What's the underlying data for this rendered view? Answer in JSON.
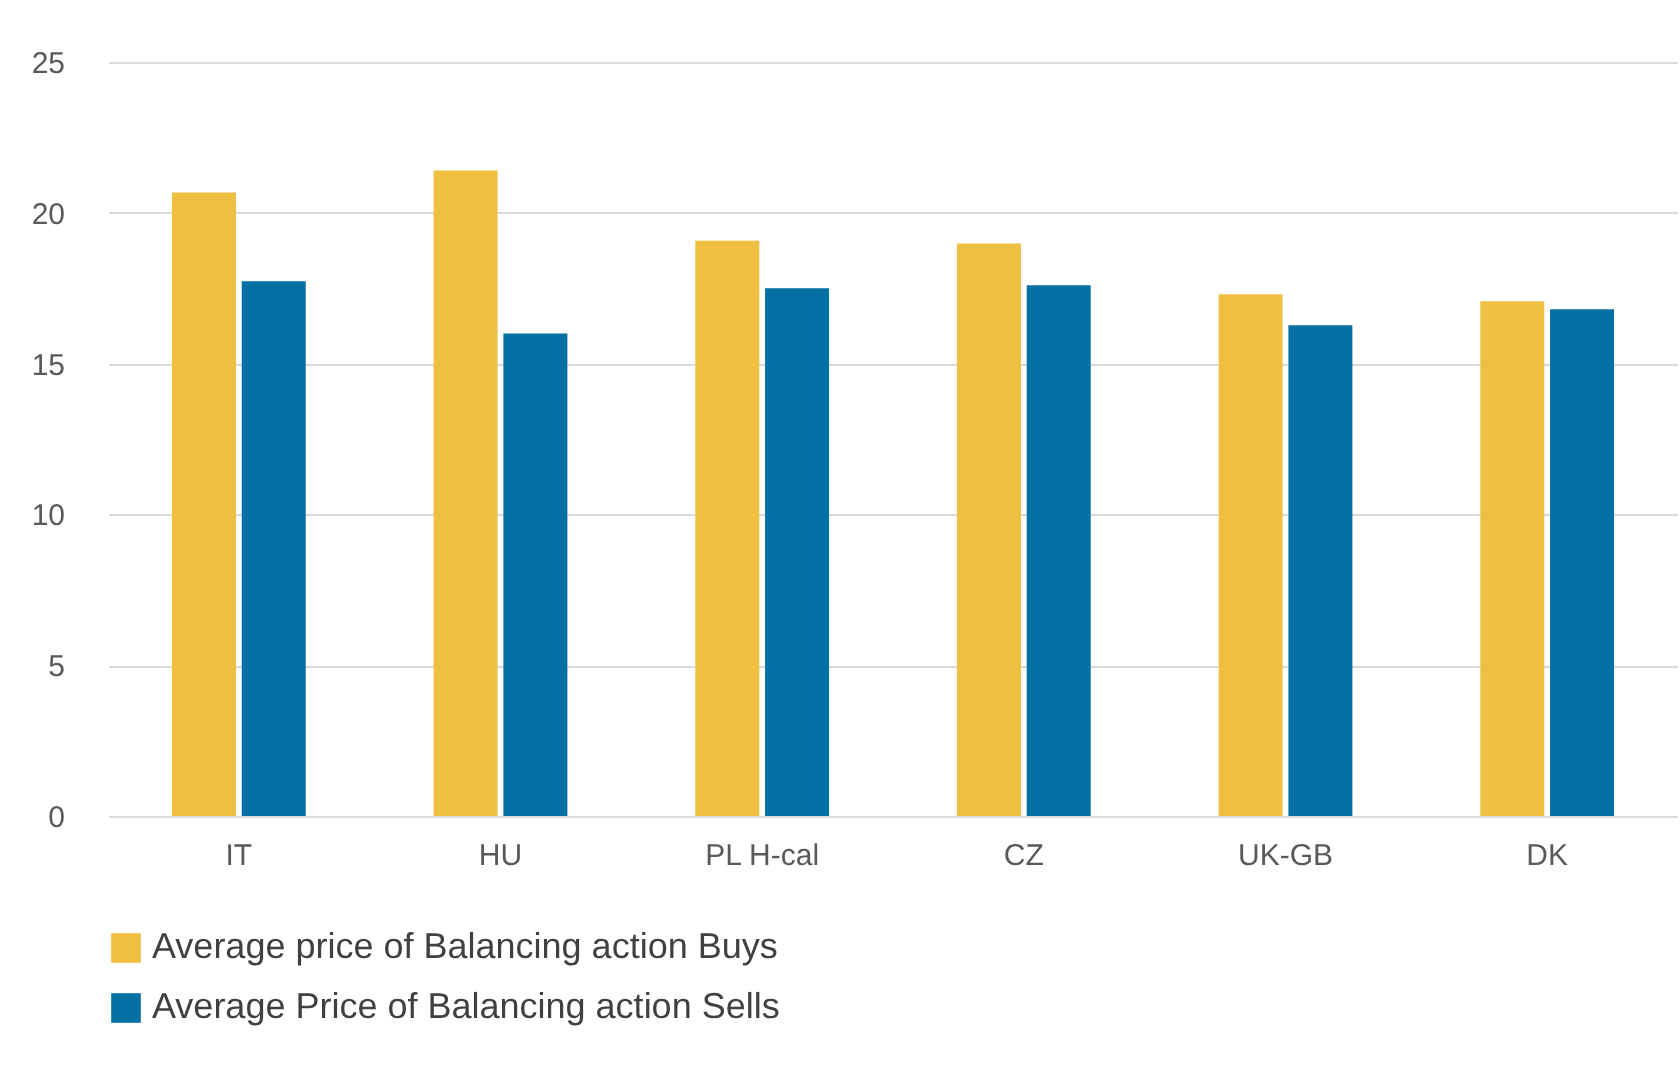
{
  "chart_data": {
    "type": "bar",
    "categories": [
      "IT",
      "HU",
      "PL H-cal",
      "CZ",
      "UK-GB",
      "DK"
    ],
    "series": [
      {
        "name": "Average price of Balancing action Buys",
        "color": "#efbf42",
        "values": [
          20.67,
          21.4,
          19.07,
          18.98,
          17.3,
          17.07
        ]
      },
      {
        "name": "Average Price of Balancing action Sells",
        "color": "#0570a3",
        "values": [
          17.73,
          16.0,
          17.5,
          17.6,
          16.27,
          16.8
        ]
      }
    ],
    "ylim": [
      0,
      25
    ],
    "yticks": [
      0,
      5,
      10,
      15,
      20,
      25
    ],
    "grid": "y",
    "legend": "bottom"
  }
}
